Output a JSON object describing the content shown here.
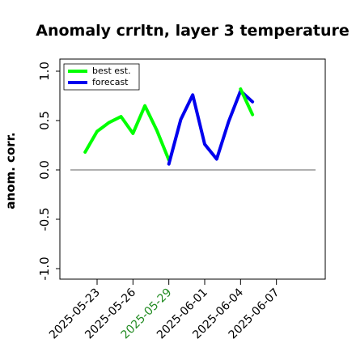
{
  "chart_data": {
    "type": "line",
    "title": "Anomaly crrltn, layer 3 temperature",
    "xlabel": "",
    "ylabel": "anom. corr.",
    "ylim": [
      -1.0,
      1.0
    ],
    "yticks": [
      "-1.0",
      "-0.5",
      "0.0",
      "0.5",
      "1.0"
    ],
    "xticks": [
      "2025-05-23",
      "2025-05-26",
      "2025-05-29",
      "2025-06-01",
      "2025-06-04",
      "2025-06-07"
    ],
    "highlight_xtick": "2025-05-29",
    "highlight_color": "#228b22",
    "reference_line": 0.0,
    "legend_position": "top-left",
    "series": [
      {
        "name": "best est.",
        "color": "#00ff00",
        "x": [
          "2025-05-22",
          "2025-05-23",
          "2025-05-24",
          "2025-05-25",
          "2025-05-26",
          "2025-05-27",
          "2025-05-28",
          "2025-05-29"
        ],
        "y": [
          0.18,
          0.39,
          0.48,
          0.54,
          0.37,
          0.65,
          0.4,
          0.1
        ]
      },
      {
        "name": "forecast",
        "color": "#0000ee",
        "x": [
          "2025-05-29",
          "2025-05-30",
          "2025-05-31",
          "2025-06-01",
          "2025-06-02",
          "2025-06-03",
          "2025-06-04",
          "2025-06-05"
        ],
        "y": [
          0.06,
          0.51,
          0.76,
          0.26,
          0.11,
          0.49,
          0.8,
          0.69
        ]
      },
      {
        "name": "",
        "color": "#00ff00",
        "x": [
          "2025-06-04",
          "2025-06-05"
        ],
        "y": [
          0.82,
          0.56
        ]
      }
    ]
  }
}
